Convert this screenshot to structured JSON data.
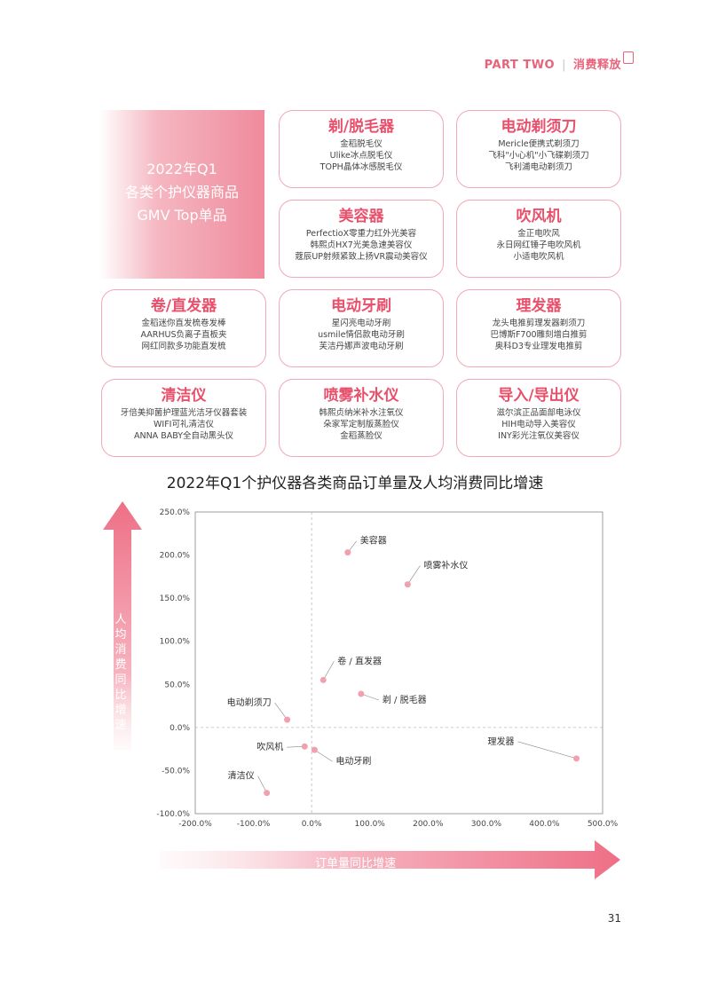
{
  "header": {
    "part": "PART TWO",
    "section": "消费释放"
  },
  "hero": {
    "line1": "2022年Q1",
    "line2": "各类个护仪器商品",
    "line3": "GMV Top单品"
  },
  "cards": [
    {
      "category": "剃/脱毛器",
      "items": [
        "金稻脱毛仪",
        "Ulike冰点脱毛仪",
        "TOPH晶体冰感脱毛仪"
      ]
    },
    {
      "category": "电动剃须刀",
      "items": [
        "Mericle便携式剃须刀",
        "飞科\"小心机\"小飞碟剃须刀",
        "飞利浦电动剃须刀"
      ]
    },
    {
      "category": "美容器",
      "items": [
        "PerfectioX零重力红外光美容",
        "韩熙贞HX7光美急速美容仪",
        "蔻辰UP射频紧致上扬VR震动美容仪"
      ]
    },
    {
      "category": "吹风机",
      "items": [
        "金正电吹风",
        "永日网红锤子电吹风机",
        "小适电吹风机"
      ]
    },
    {
      "category": "卷/直发器",
      "items": [
        "金稻迷你直发梳卷发棒",
        "AARHUS负离子直板夹",
        "网红同款多功能直发梳"
      ]
    },
    {
      "category": "电动牙刷",
      "items": [
        "星闪亮电动牙刷",
        "usmile情侣款电动牙刷",
        "芙洁丹娜声波电动牙刷"
      ]
    },
    {
      "category": "理发器",
      "items": [
        "龙头电推剪理发器剃须刀",
        "巴博斯F700雕刻增白推剪",
        "奥科D3专业理发电推剪"
      ]
    },
    {
      "category": "清洁仪",
      "items": [
        "牙倍美抑菌护理蓝光洁牙仪器套装",
        "WIFI可礼清洁仪",
        "ANNA BABY全自动黑头仪"
      ]
    },
    {
      "category": "喷雾补水仪",
      "items": [
        "韩熙贞纳米补水注氧仪",
        "朵家军定制版蒸脸仪",
        "金稻蒸脸仪"
      ]
    },
    {
      "category": "导入/导出仪",
      "items": [
        "滋尔滨正品面部电泳仪",
        "HIH电动导入美容仪",
        "INY彩光注氧仪美容仪"
      ]
    }
  ],
  "chart_title": "2022年Q1个护仪器各类商品订单量及人均消费同比增速",
  "axis_arrows": {
    "y": "人均消费同比增速",
    "x": "订单量同比增速"
  },
  "colors": {
    "accent": "#e8637a",
    "point": "#f2a0ad",
    "card_border": "#f2a8b5"
  },
  "chart_data": {
    "type": "scatter",
    "xlabel": "订单量同比增速",
    "ylabel": "人均消费同比增速",
    "xlim": [
      -200,
      500
    ],
    "ylim": [
      -100,
      250
    ],
    "x_ticks": [
      "-200.0%",
      "-100.0%",
      "0.0%",
      "100.0%",
      "200.0%",
      "300.0%",
      "400.0%",
      "500.0%"
    ],
    "y_ticks": [
      "250.0%",
      "200.0%",
      "150.0%",
      "100.0%",
      "50.0%",
      "0.0%",
      "-50.0%",
      "-100.0%"
    ],
    "grid": false,
    "points": [
      {
        "label": "美容器",
        "x": 62,
        "y": 203
      },
      {
        "label": "喷雾补水仪",
        "x": 165,
        "y": 166
      },
      {
        "label": "卷 / 直发器",
        "x": 20,
        "y": 55
      },
      {
        "label": "剃 / 脱毛器",
        "x": 85,
        "y": 39
      },
      {
        "label": "电动剃须刀",
        "x": -42,
        "y": 9
      },
      {
        "label": "吹风机",
        "x": -12,
        "y": -22
      },
      {
        "label": "电动牙刷",
        "x": 5,
        "y": -26
      },
      {
        "label": "清洁仪",
        "x": -77,
        "y": -76
      },
      {
        "label": "理发器",
        "x": 455,
        "y": -36
      }
    ]
  },
  "page_number": "31"
}
